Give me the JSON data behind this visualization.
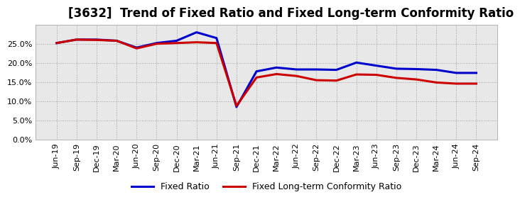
{
  "title": "[3632]  Trend of Fixed Ratio and Fixed Long-term Conformity Ratio",
  "x_labels": [
    "Jun-19",
    "Sep-19",
    "Dec-19",
    "Mar-20",
    "Jun-20",
    "Sep-20",
    "Dec-20",
    "Mar-21",
    "Jun-21",
    "Sep-21",
    "Dec-21",
    "Mar-22",
    "Jun-22",
    "Sep-22",
    "Dec-22",
    "Mar-23",
    "Jun-23",
    "Sep-23",
    "Dec-23",
    "Mar-24",
    "Jun-24",
    "Sep-24"
  ],
  "fixed_ratio": [
    25.2,
    26.1,
    26.1,
    25.8,
    24.0,
    25.2,
    25.8,
    28.0,
    26.5,
    8.5,
    17.8,
    18.8,
    18.3,
    18.3,
    18.2,
    20.1,
    19.3,
    18.5,
    18.4,
    18.2,
    17.4,
    17.4
  ],
  "fixed_lt_ratio": [
    25.2,
    26.1,
    26.0,
    25.8,
    23.8,
    25.0,
    25.2,
    25.4,
    25.2,
    8.8,
    16.2,
    17.1,
    16.6,
    15.5,
    15.4,
    17.0,
    16.9,
    16.1,
    15.7,
    14.9,
    14.6,
    14.6
  ],
  "fixed_ratio_color": "#0000CC",
  "fixed_lt_ratio_color": "#CC0000",
  "ylim_min": 0,
  "ylim_max": 30,
  "yticks": [
    0.0,
    5.0,
    10.0,
    15.0,
    20.0,
    25.0
  ],
  "background_color": "#ffffff",
  "plot_bg_color": "#e8e8e8",
  "grid_color": "#999999",
  "legend_fixed_ratio": "Fixed Ratio",
  "legend_fixed_lt_ratio": "Fixed Long-term Conformity Ratio",
  "title_fontsize": 12,
  "tick_fontsize": 8,
  "legend_fontsize": 9
}
